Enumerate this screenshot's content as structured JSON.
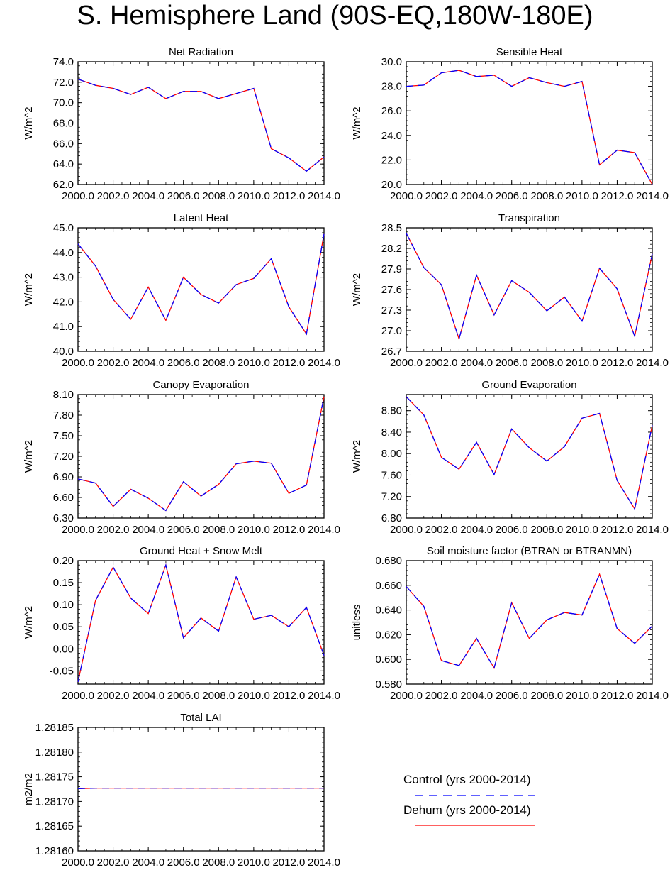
{
  "title": "S. Hemisphere Land (90S-EQ,180W-180E)",
  "legend": [
    {
      "name": "Control (yrs 2000-2014)",
      "color": "#0000ff",
      "style": "dashed"
    },
    {
      "name": "Dehum (yrs 2000-2014)",
      "color": "#ff0000",
      "style": "solid"
    }
  ],
  "chart_data": [
    {
      "type": "line",
      "title": "Net Radiation",
      "ylabel": "W/m^2",
      "x": [
        2000,
        2001,
        2002,
        2003,
        2004,
        2005,
        2006,
        2007,
        2008,
        2009,
        2010,
        2011,
        2012,
        2013,
        2014
      ],
      "xlim": [
        2000,
        2014
      ],
      "xticks": [
        "2000.0",
        "2002.0",
        "2004.0",
        "2006.0",
        "2008.0",
        "2010.0",
        "2012.0",
        "2014.0"
      ],
      "ylim": [
        62,
        74
      ],
      "yticks": [
        "62.0",
        "64.0",
        "66.0",
        "68.0",
        "70.0",
        "72.0",
        "74.0"
      ],
      "series": [
        {
          "name": "Control (yrs 2000-2014)",
          "values": [
            72.3,
            71.7,
            71.4,
            70.8,
            71.5,
            70.4,
            71.1,
            71.1,
            70.4,
            70.9,
            71.4,
            65.5,
            64.6,
            63.3,
            64.7
          ]
        },
        {
          "name": "Dehum (yrs 2000-2014)",
          "values": [
            72.3,
            71.7,
            71.4,
            70.8,
            71.5,
            70.4,
            71.1,
            71.1,
            70.4,
            70.9,
            71.4,
            65.5,
            64.6,
            63.3,
            64.7
          ]
        }
      ]
    },
    {
      "type": "line",
      "title": "Sensible Heat",
      "ylabel": "W/m^2",
      "x": [
        2000,
        2001,
        2002,
        2003,
        2004,
        2005,
        2006,
        2007,
        2008,
        2009,
        2010,
        2011,
        2012,
        2013,
        2014
      ],
      "xlim": [
        2000,
        2014
      ],
      "xticks": [
        "2000.0",
        "2002.0",
        "2004.0",
        "2006.0",
        "2008.0",
        "2010.0",
        "2012.0",
        "2014.0"
      ],
      "ylim": [
        20,
        30
      ],
      "yticks": [
        "20.0",
        "22.0",
        "24.0",
        "26.0",
        "28.0",
        "30.0"
      ],
      "series": [
        {
          "name": "Control (yrs 2000-2014)",
          "values": [
            28.0,
            28.1,
            29.1,
            29.3,
            28.8,
            28.9,
            28.0,
            28.7,
            28.3,
            28.0,
            28.4,
            21.6,
            22.8,
            22.6,
            20.0
          ]
        },
        {
          "name": "Dehum (yrs 2000-2014)",
          "values": [
            28.0,
            28.1,
            29.1,
            29.3,
            28.8,
            28.9,
            28.0,
            28.7,
            28.3,
            28.0,
            28.4,
            21.6,
            22.8,
            22.6,
            20.0
          ]
        }
      ]
    },
    {
      "type": "line",
      "title": "Latent Heat",
      "ylabel": "W/m^2",
      "x": [
        2000,
        2001,
        2002,
        2003,
        2004,
        2005,
        2006,
        2007,
        2008,
        2009,
        2010,
        2011,
        2012,
        2013,
        2014
      ],
      "xlim": [
        2000,
        2014
      ],
      "xticks": [
        "2000.0",
        "2002.0",
        "2004.0",
        "2006.0",
        "2008.0",
        "2010.0",
        "2012.0",
        "2014.0"
      ],
      "ylim": [
        40,
        45
      ],
      "yticks": [
        "40.0",
        "41.0",
        "42.0",
        "43.0",
        "44.0",
        "45.0"
      ],
      "series": [
        {
          "name": "Control (yrs 2000-2014)",
          "values": [
            44.35,
            43.45,
            42.1,
            41.3,
            42.6,
            41.25,
            43.0,
            42.3,
            41.95,
            42.7,
            42.95,
            43.75,
            41.8,
            40.7,
            44.75
          ]
        },
        {
          "name": "Dehum (yrs 2000-2014)",
          "values": [
            44.35,
            43.45,
            42.1,
            41.3,
            42.6,
            41.25,
            43.0,
            42.3,
            41.95,
            42.7,
            42.95,
            43.75,
            41.8,
            40.7,
            44.75
          ]
        }
      ]
    },
    {
      "type": "line",
      "title": "Transpiration",
      "ylabel": "W/m^2",
      "x": [
        2000,
        2001,
        2002,
        2003,
        2004,
        2005,
        2006,
        2007,
        2008,
        2009,
        2010,
        2011,
        2012,
        2013,
        2014
      ],
      "xlim": [
        2000,
        2014
      ],
      "xticks": [
        "2000.0",
        "2002.0",
        "2004.0",
        "2006.0",
        "2008.0",
        "2010.0",
        "2012.0",
        "2014.0"
      ],
      "ylim": [
        26.7,
        28.5
      ],
      "yticks": [
        "26.7",
        "27.0",
        "27.3",
        "27.6",
        "27.9",
        "28.2",
        "28.5"
      ],
      "series": [
        {
          "name": "Control (yrs 2000-2014)",
          "values": [
            28.42,
            27.92,
            27.67,
            26.88,
            27.81,
            27.23,
            27.73,
            27.56,
            27.29,
            27.49,
            27.14,
            27.91,
            27.61,
            26.92,
            28.12
          ]
        },
        {
          "name": "Dehum (yrs 2000-2014)",
          "values": [
            28.42,
            27.92,
            27.67,
            26.88,
            27.81,
            27.23,
            27.73,
            27.56,
            27.29,
            27.49,
            27.14,
            27.91,
            27.61,
            26.92,
            28.12
          ]
        }
      ]
    },
    {
      "type": "line",
      "title": "Canopy Evaporation",
      "ylabel": "W/m^2",
      "x": [
        2000,
        2001,
        2002,
        2003,
        2004,
        2005,
        2006,
        2007,
        2008,
        2009,
        2010,
        2011,
        2012,
        2013,
        2014
      ],
      "xlim": [
        2000,
        2014
      ],
      "xticks": [
        "2000.0",
        "2002.0",
        "2004.0",
        "2006.0",
        "2008.0",
        "2010.0",
        "2012.0",
        "2014.0"
      ],
      "ylim": [
        6.3,
        8.1
      ],
      "yticks": [
        "6.30",
        "6.60",
        "6.90",
        "7.20",
        "7.50",
        "7.80",
        "8.10"
      ],
      "series": [
        {
          "name": "Control (yrs 2000-2014)",
          "values": [
            6.87,
            6.81,
            6.47,
            6.72,
            6.59,
            6.41,
            6.83,
            6.62,
            6.79,
            7.09,
            7.13,
            7.1,
            6.66,
            6.78,
            8.07
          ]
        },
        {
          "name": "Dehum (yrs 2000-2014)",
          "values": [
            6.87,
            6.81,
            6.47,
            6.72,
            6.59,
            6.41,
            6.83,
            6.62,
            6.79,
            7.09,
            7.13,
            7.1,
            6.66,
            6.78,
            8.07
          ]
        }
      ]
    },
    {
      "type": "line",
      "title": "Ground Evaporation",
      "ylabel": "W/m^2",
      "x": [
        2000,
        2001,
        2002,
        2003,
        2004,
        2005,
        2006,
        2007,
        2008,
        2009,
        2010,
        2011,
        2012,
        2013,
        2014
      ],
      "xlim": [
        2000,
        2014
      ],
      "xticks": [
        "2000.0",
        "2002.0",
        "2004.0",
        "2006.0",
        "2008.0",
        "2010.0",
        "2012.0",
        "2014.0"
      ],
      "ylim": [
        6.8,
        9.1
      ],
      "yticks": [
        "6.80",
        "7.20",
        "7.60",
        "8.00",
        "8.40",
        "8.80"
      ],
      "series": [
        {
          "name": "Control (yrs 2000-2014)",
          "values": [
            9.06,
            8.72,
            7.93,
            7.71,
            8.21,
            7.61,
            8.46,
            8.11,
            7.86,
            8.13,
            8.66,
            8.75,
            7.5,
            6.97,
            8.53
          ]
        },
        {
          "name": "Dehum (yrs 2000-2014)",
          "values": [
            9.06,
            8.72,
            7.93,
            7.71,
            8.21,
            7.61,
            8.46,
            8.11,
            7.86,
            8.13,
            8.66,
            8.75,
            7.5,
            6.97,
            8.53
          ]
        }
      ]
    },
    {
      "type": "line",
      "title": "Ground Heat + Snow Melt",
      "ylabel": "W/m^2",
      "x": [
        2000,
        2001,
        2002,
        2003,
        2004,
        2005,
        2006,
        2007,
        2008,
        2009,
        2010,
        2011,
        2012,
        2013,
        2014
      ],
      "xlim": [
        2000,
        2014
      ],
      "xticks": [
        "2000.0",
        "2002.0",
        "2004.0",
        "2006.0",
        "2008.0",
        "2010.0",
        "2012.0",
        "2014.0"
      ],
      "ylim": [
        -0.08,
        0.2
      ],
      "yticks": [
        "-0.05",
        "0.00",
        "0.05",
        "0.10",
        "0.15",
        "0.20"
      ],
      "series": [
        {
          "name": "Control (yrs 2000-2014)",
          "values": [
            -0.075,
            0.11,
            0.185,
            0.115,
            0.08,
            0.19,
            0.025,
            0.07,
            0.04,
            0.163,
            0.067,
            0.076,
            0.05,
            0.094,
            -0.015
          ]
        },
        {
          "name": "Dehum (yrs 2000-2014)",
          "values": [
            -0.075,
            0.11,
            0.185,
            0.115,
            0.08,
            0.19,
            0.025,
            0.07,
            0.04,
            0.163,
            0.067,
            0.076,
            0.05,
            0.094,
            -0.015
          ]
        }
      ]
    },
    {
      "type": "line",
      "title": "Soil moisture factor (BTRAN or BTRANMN)",
      "ylabel": "unitless",
      "x": [
        2000,
        2001,
        2002,
        2003,
        2004,
        2005,
        2006,
        2007,
        2008,
        2009,
        2010,
        2011,
        2012,
        2013,
        2014
      ],
      "xlim": [
        2000,
        2014
      ],
      "xticks": [
        "2000.0",
        "2002.0",
        "2004.0",
        "2006.0",
        "2008.0",
        "2010.0",
        "2012.0",
        "2014.0"
      ],
      "ylim": [
        0.58,
        0.68
      ],
      "yticks": [
        "0.580",
        "0.600",
        "0.620",
        "0.640",
        "0.660",
        "0.680"
      ],
      "series": [
        {
          "name": "Control (yrs 2000-2014)",
          "values": [
            0.659,
            0.643,
            0.599,
            0.595,
            0.617,
            0.593,
            0.646,
            0.617,
            0.632,
            0.638,
            0.636,
            0.669,
            0.625,
            0.613,
            0.627
          ]
        },
        {
          "name": "Dehum (yrs 2000-2014)",
          "values": [
            0.659,
            0.643,
            0.599,
            0.595,
            0.617,
            0.593,
            0.646,
            0.617,
            0.632,
            0.638,
            0.636,
            0.669,
            0.625,
            0.613,
            0.627
          ]
        }
      ]
    },
    {
      "type": "line",
      "title": "Total LAI",
      "ylabel": "m2/m2",
      "x": [
        2000,
        2001,
        2002,
        2003,
        2004,
        2005,
        2006,
        2007,
        2008,
        2009,
        2010,
        2011,
        2012,
        2013,
        2014
      ],
      "xlim": [
        2000,
        2014
      ],
      "xticks": [
        "2000.0",
        "2002.0",
        "2004.0",
        "2006.0",
        "2008.0",
        "2010.0",
        "2012.0",
        "2014.0"
      ],
      "ylim": [
        1.2816,
        1.28185
      ],
      "yticks": [
        "1.28160",
        "1.28165",
        "1.28170",
        "1.28175",
        "1.28180",
        "1.28185"
      ],
      "series": [
        {
          "name": "Control (yrs 2000-2014)",
          "values": [
            1.281726,
            1.281727,
            1.281727,
            1.281727,
            1.281727,
            1.281727,
            1.281727,
            1.281727,
            1.281727,
            1.281727,
            1.281727,
            1.281727,
            1.281727,
            1.281727,
            1.281727
          ]
        },
        {
          "name": "Dehum (yrs 2000-2014)",
          "values": [
            1.281726,
            1.281727,
            1.281727,
            1.281727,
            1.281727,
            1.281727,
            1.281727,
            1.281727,
            1.281727,
            1.281727,
            1.281727,
            1.281727,
            1.281727,
            1.281727,
            1.281727
          ]
        }
      ]
    }
  ]
}
